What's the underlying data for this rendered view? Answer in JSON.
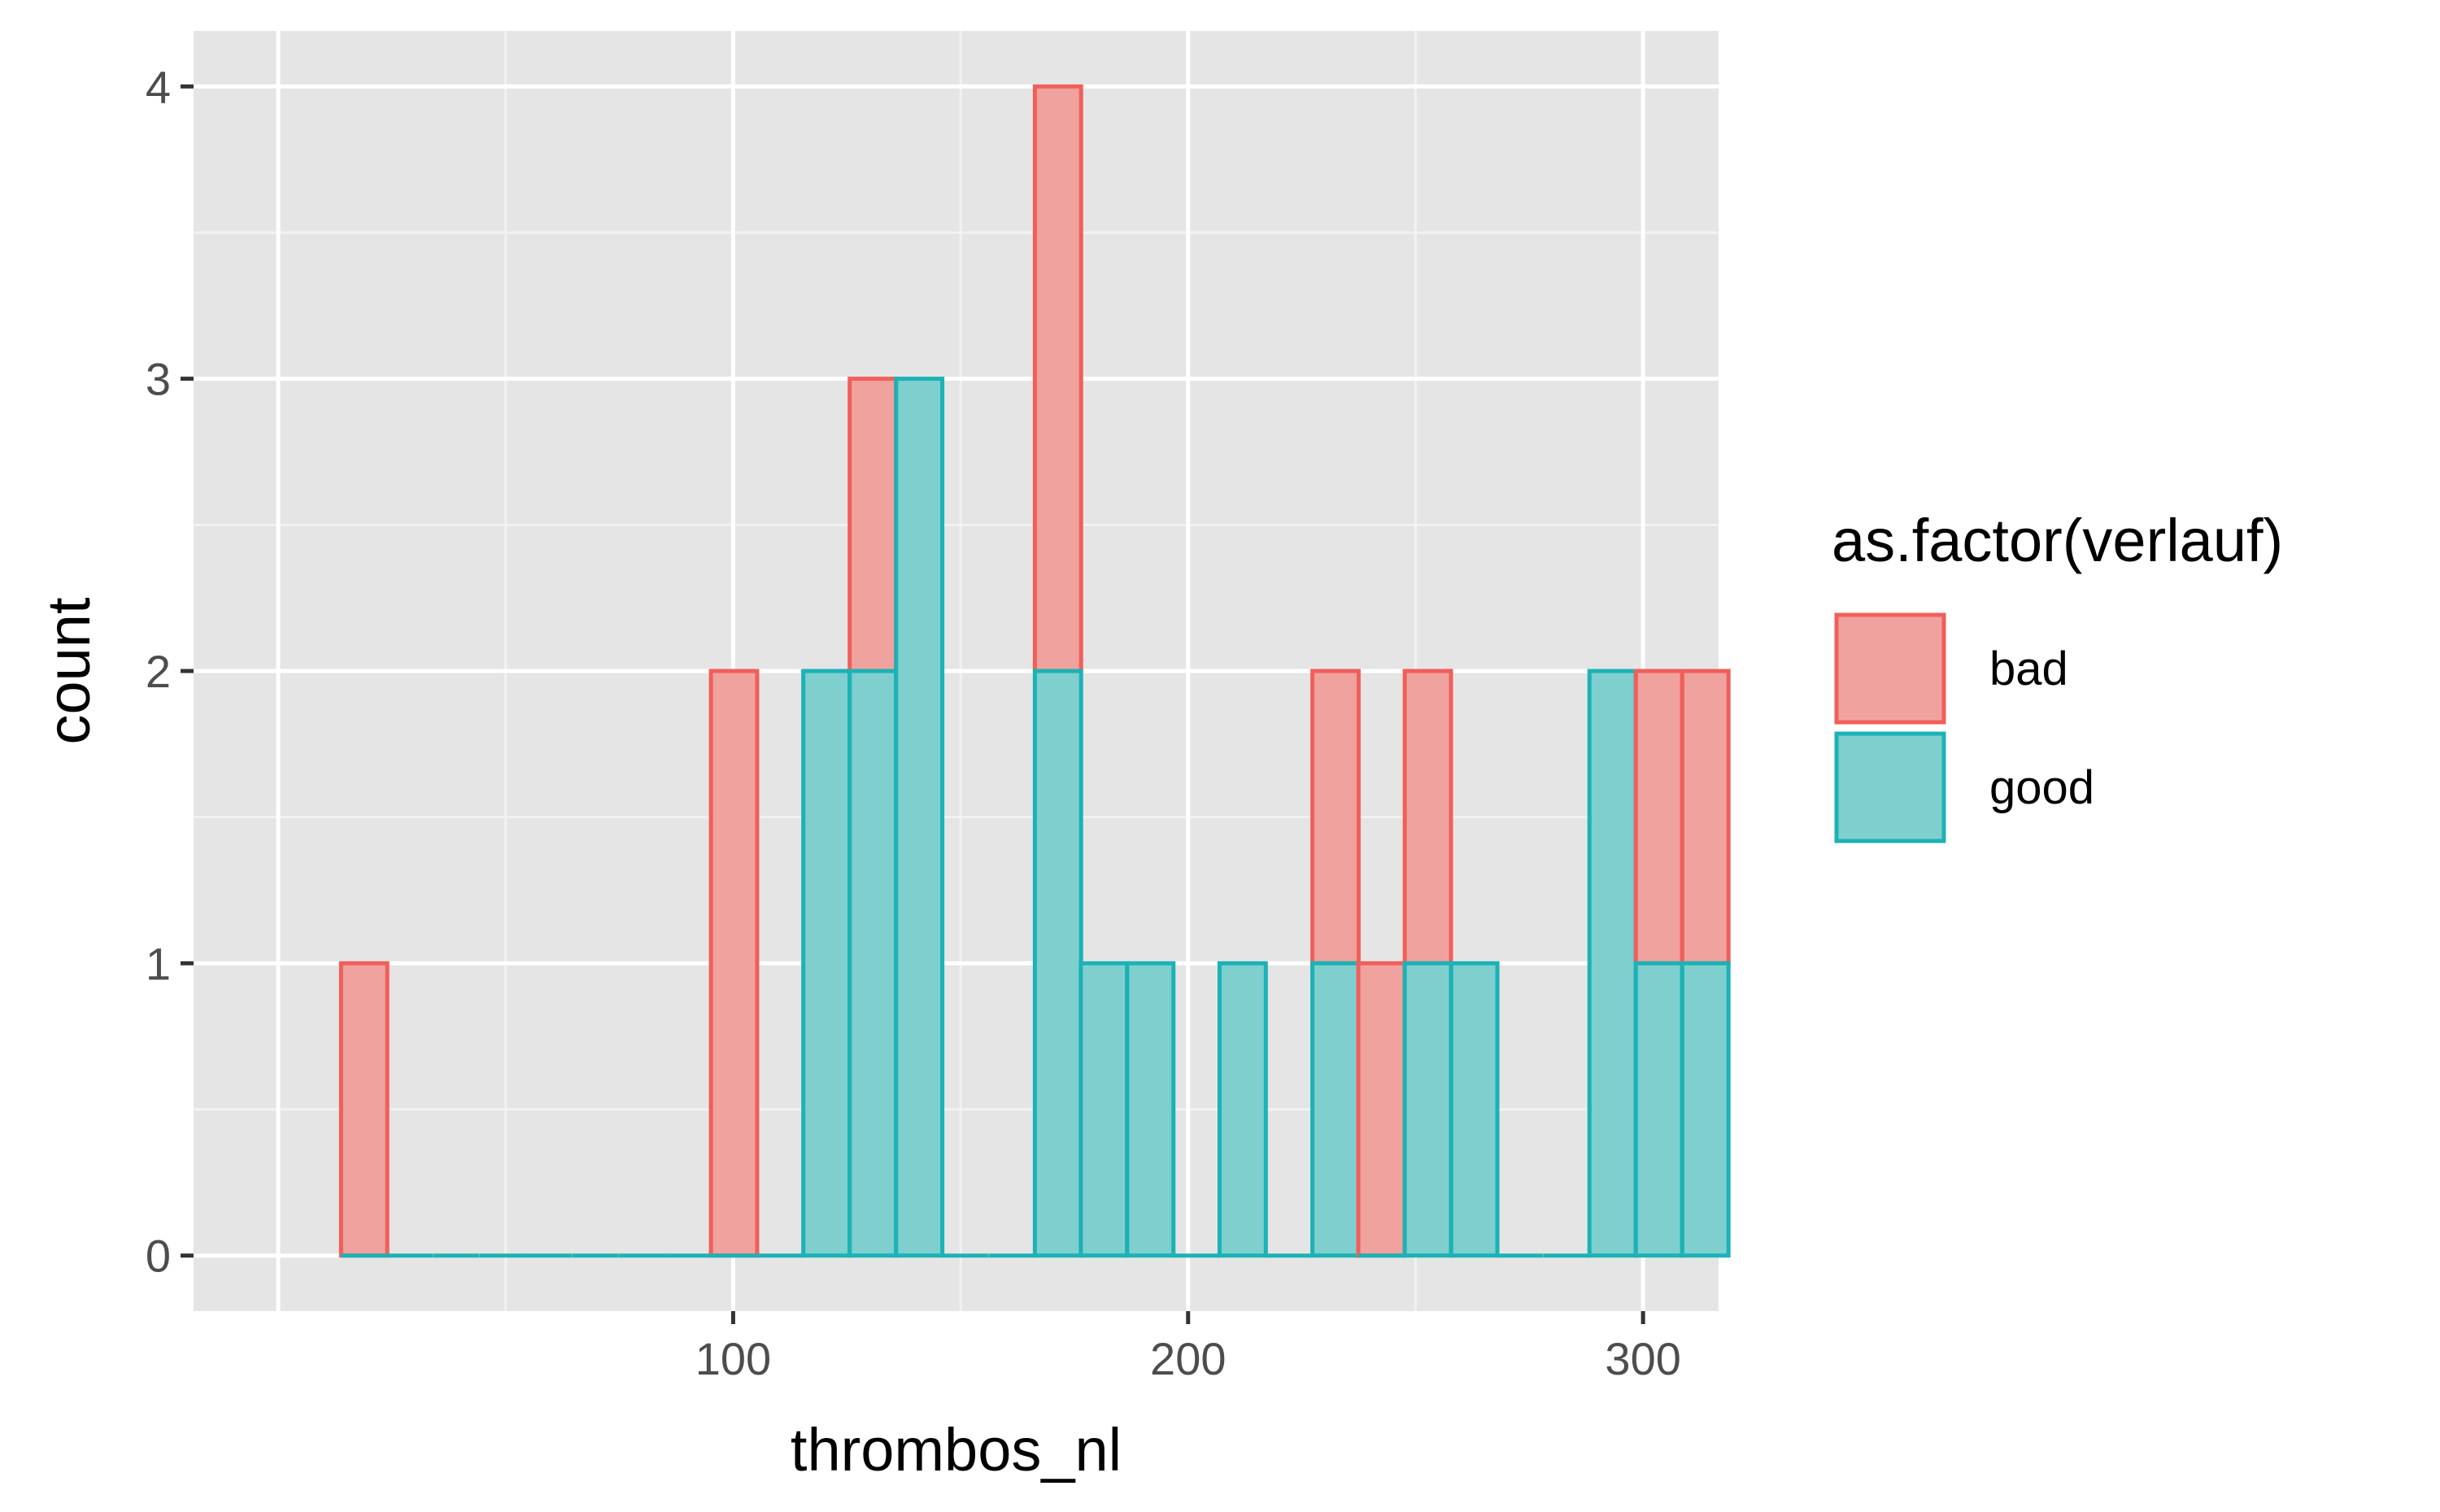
{
  "chart_data": {
    "type": "bar",
    "subtype": "stacked histogram",
    "xlabel": "thrombos_nl",
    "ylabel": "count",
    "x_ticks": [
      100,
      200,
      300
    ],
    "x_tick_labels": [
      "100",
      "200",
      "300"
    ],
    "y_ticks": [
      0,
      1,
      2,
      3,
      4
    ],
    "y_tick_labels": [
      "0",
      "1",
      "2",
      "3",
      "4"
    ],
    "xlim": [
      -18.6,
      316.6
    ],
    "ylim": [
      -0.19,
      4.19
    ],
    "grid": true,
    "bin_width": 10.16,
    "bin_start": 13.8,
    "x": [
      18.9,
      29.0,
      39.2,
      49.4,
      59.5,
      69.7,
      79.9,
      90.0,
      100.2,
      110.4,
      120.5,
      130.7,
      140.9,
      151.0,
      161.2,
      171.4,
      181.5,
      191.7,
      201.9,
      212.0,
      222.2,
      232.4,
      242.5,
      252.7,
      262.9,
      273.0,
      283.2,
      293.3,
      303.5,
      313.7
    ],
    "series": [
      {
        "name": "bad",
        "values": [
          1,
          0,
          0,
          0,
          0,
          0,
          0,
          0,
          2,
          0,
          0,
          1,
          0,
          0,
          0,
          2,
          0,
          0,
          0,
          0,
          0,
          1,
          1,
          1,
          0,
          0,
          0,
          0,
          1,
          1
        ]
      },
      {
        "name": "good",
        "values": [
          0,
          0,
          0,
          0,
          0,
          0,
          0,
          0,
          0,
          0,
          2,
          2,
          3,
          0,
          0,
          2,
          1,
          1,
          0,
          1,
          0,
          1,
          0,
          1,
          1,
          0,
          0,
          2,
          1,
          1
        ]
      }
    ],
    "legend": {
      "title": "as.factor(verlauf)",
      "position": "right",
      "entries": [
        "bad",
        "good"
      ]
    }
  },
  "colors": {
    "panel_background": "#e5e5e5",
    "grid_major": "#ffffff",
    "grid_minor": "#f2f2f2",
    "bad_fill": "#f0a29f",
    "bad_outline": "#f05f5a",
    "good_fill": "#7fcfcf",
    "good_outline": "#1cb2b6",
    "tick_label": "#4d4d4d",
    "tick_mark": "#333333",
    "title_text": "#000000"
  }
}
